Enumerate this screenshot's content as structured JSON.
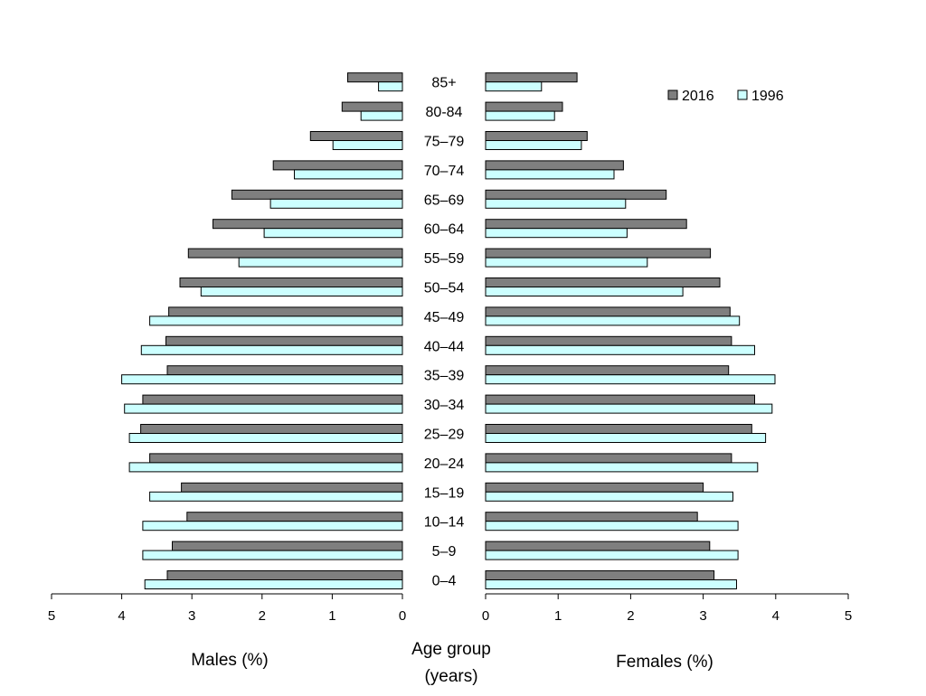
{
  "chart_data": {
    "type": "bar",
    "orientation": "horizontal",
    "layout": "population-pyramid",
    "center_label": [
      "Age group",
      "(years)"
    ],
    "categories": [
      "0–4",
      "5–9",
      "10–14",
      "15–19",
      "20–24",
      "25–29",
      "30–34",
      "35–39",
      "40–44",
      "45–49",
      "50–54",
      "55–59",
      "60–64",
      "65–69",
      "70–74",
      "75–79",
      "80-84",
      "85+"
    ],
    "legend": {
      "position": "top-right",
      "entries": [
        {
          "name": "2016",
          "color": "#7f7f7f"
        },
        {
          "name": "1996",
          "color": "#ccffff"
        }
      ]
    },
    "males": {
      "xlabel": "Males (%)",
      "xlim": [
        5,
        0
      ],
      "ticks": [
        "5",
        "4",
        "3",
        "2",
        "1",
        "0"
      ],
      "series": [
        {
          "name": "2016",
          "values": [
            3.35,
            3.28,
            3.07,
            3.15,
            3.6,
            3.73,
            3.7,
            3.35,
            3.37,
            3.33,
            3.17,
            3.05,
            2.7,
            2.43,
            1.84,
            1.31,
            0.86,
            0.78
          ]
        },
        {
          "name": "1996",
          "values": [
            3.67,
            3.7,
            3.7,
            3.6,
            3.89,
            3.89,
            3.96,
            4.0,
            3.72,
            3.6,
            2.87,
            2.33,
            1.97,
            1.88,
            1.54,
            0.99,
            0.59,
            0.34
          ]
        }
      ]
    },
    "females": {
      "xlabel": "Females (%)",
      "xlim": [
        0,
        5
      ],
      "ticks": [
        "0",
        "1",
        "2",
        "3",
        "4",
        "5"
      ],
      "series": [
        {
          "name": "2016",
          "values": [
            3.15,
            3.09,
            2.92,
            3.0,
            3.39,
            3.67,
            3.71,
            3.35,
            3.39,
            3.37,
            3.23,
            3.1,
            2.77,
            2.49,
            1.9,
            1.4,
            1.06,
            1.26
          ]
        },
        {
          "name": "1996",
          "values": [
            3.46,
            3.48,
            3.48,
            3.41,
            3.75,
            3.86,
            3.95,
            3.99,
            3.71,
            3.5,
            2.72,
            2.23,
            1.95,
            1.93,
            1.77,
            1.32,
            0.95,
            0.77
          ]
        }
      ]
    }
  }
}
